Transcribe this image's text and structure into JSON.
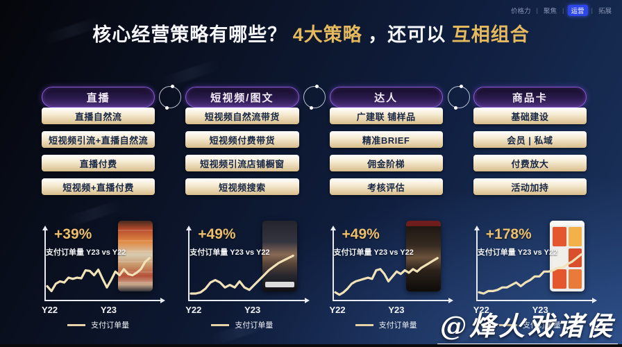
{
  "top_nav": {
    "separator": "|",
    "items": [
      {
        "label": "价格力",
        "active": false
      },
      {
        "label": "聚焦",
        "active": false
      },
      {
        "label": "运营",
        "active": true
      },
      {
        "label": "拓展",
        "active": false
      }
    ]
  },
  "title": {
    "parts": [
      {
        "text": "核心经营策略有哪些？",
        "color": "white"
      },
      {
        "text": "4大策略",
        "color": "gold"
      },
      {
        "text": "，还可以",
        "color": "white"
      },
      {
        "text": "互相组合",
        "color": "gold"
      }
    ]
  },
  "columns": [
    {
      "header": "直播",
      "items": [
        "直播自然流",
        "短视频引流+直播自然流",
        "直播付费",
        "短视频+直播付费"
      ]
    },
    {
      "header": "短视频/图文",
      "items": [
        "短视频自然流带货",
        "短视频付费带货",
        "短视频引流店铺橱窗",
        "短视频搜索"
      ]
    },
    {
      "header": "达人",
      "items": [
        "广建联 铺样品",
        "精准BRIEF",
        "佣金阶梯",
        "考核评估"
      ]
    },
    {
      "header": "商品卡",
      "items": [
        "基础建设",
        "会员 | 私域",
        "付费放大",
        "活动加持"
      ]
    }
  ],
  "chart_data": [
    {
      "type": "line",
      "growth_label": "+39%",
      "subtitle": "支付订单量 Y23 vs Y22",
      "x_tick_labels": [
        "Y22",
        "Y23"
      ],
      "legend": [
        "支付订单量"
      ],
      "thumbnail": "live-commerce-phone-screenshot",
      "y_values_normalized": [
        20,
        12,
        24,
        28,
        26,
        34,
        32,
        34,
        33,
        46,
        45,
        38,
        47,
        32,
        18,
        30,
        44,
        38,
        48,
        40,
        38,
        42,
        48,
        60,
        66
      ]
    },
    {
      "type": "line",
      "growth_label": "+49%",
      "subtitle": "支付订单量 Y23 vs Y22",
      "x_tick_labels": [
        "Y22",
        "Y23"
      ],
      "legend": [
        "支付订单量"
      ],
      "thumbnail": "short-video-phone-screenshot",
      "y_values_normalized": [
        8,
        8,
        10,
        16,
        26,
        30,
        26,
        18,
        22,
        18,
        28,
        18,
        14,
        22,
        30,
        38,
        46,
        52,
        58,
        62,
        66,
        70
      ]
    },
    {
      "type": "line",
      "growth_label": "+49%",
      "subtitle": "支付订单量 Y23 vs Y22",
      "x_tick_labels": [
        "Y22",
        "Y23"
      ],
      "legend": [
        "支付订单量"
      ],
      "thumbnail": "influencer-video-phone-screenshot",
      "y_values_normalized": [
        10,
        6,
        10,
        16,
        24,
        28,
        30,
        32,
        34,
        32,
        46,
        48,
        40,
        28,
        36,
        44,
        40,
        46,
        42,
        48,
        44,
        50,
        54,
        58,
        62,
        66
      ]
    },
    {
      "type": "line",
      "growth_label": "+178%",
      "subtitle": "支付订单量 Y23 vs Y22",
      "x_tick_labels": [
        "Y22",
        "Y23"
      ],
      "legend": [
        "支付订单量"
      ],
      "thumbnail": "product-card-grid-phone-screenshot",
      "y_values_normalized": [
        10,
        8,
        12,
        12,
        14,
        18,
        18,
        22,
        26,
        20,
        26,
        30,
        36,
        36,
        44,
        44,
        46,
        50,
        50,
        56,
        60,
        66,
        72
      ]
    }
  ],
  "watermark": "@烽火戏诸侯",
  "colors": {
    "accent_gold": "#e5b95e",
    "pill_border": "#8a5bd6",
    "trend_line": "#f2e2b8",
    "nav_active_bg": "#2c46e8",
    "button_text": "#182744"
  }
}
